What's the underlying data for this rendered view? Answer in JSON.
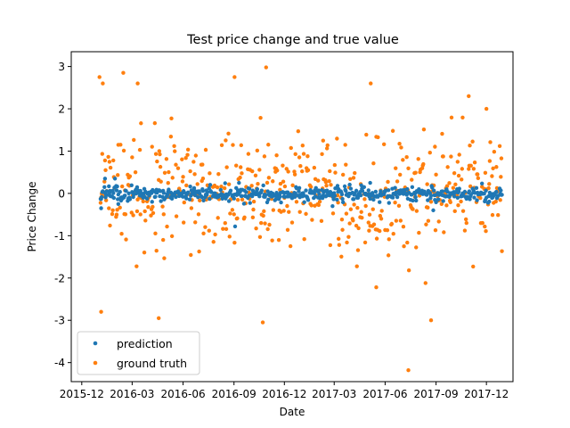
{
  "chart_data": {
    "type": "scatter",
    "title": "Test price change and true value",
    "xlabel": "Date",
    "ylabel": "Price Change",
    "x_tick_labels": [
      "2015-12",
      "2016-03",
      "2016-06",
      "2016-09",
      "2016-12",
      "2017-03",
      "2017-06",
      "2017-09",
      "2017-12"
    ],
    "x_range": [
      "2015-11-12",
      "2018-01-18"
    ],
    "x_data_range": [
      "2016-01-04",
      "2017-12-29"
    ],
    "y_ticks": [
      -4,
      -3,
      -2,
      -1,
      0,
      1,
      2,
      3
    ],
    "ylim": [
      -4.45,
      3.35
    ],
    "grid": false,
    "legend_position": "lower-left",
    "series": [
      {
        "name": "prediction",
        "color": "#1f77b4",
        "notable_points": [
          {
            "x": "2016-01-05",
            "y": -0.35
          },
          {
            "x": "2016-01-12",
            "y": 0.35
          },
          {
            "x": "2016-01-30",
            "y": 0.35
          },
          {
            "x": "2016-02-05",
            "y": -0.25
          },
          {
            "x": "2016-09-03",
            "y": -0.78
          },
          {
            "x": "2016-09-10",
            "y": 0.25
          },
          {
            "x": "2017-02-26",
            "y": -0.3
          },
          {
            "x": "2017-05-05",
            "y": 0.25
          },
          {
            "x": "2017-08-27",
            "y": -0.4
          }
        ],
        "typical_range": [
          -0.35,
          0.3
        ]
      },
      {
        "name": "ground truth",
        "color": "#ff7f0e",
        "notable_points": [
          {
            "x": "2016-01-02",
            "y": 2.75
          },
          {
            "x": "2016-01-08",
            "y": 2.6
          },
          {
            "x": "2016-02-14",
            "y": 2.85
          },
          {
            "x": "2016-03-11",
            "y": 2.6
          },
          {
            "x": "2016-09-02",
            "y": 2.75
          },
          {
            "x": "2016-10-29",
            "y": 2.98
          },
          {
            "x": "2017-05-06",
            "y": 2.6
          },
          {
            "x": "2017-10-30",
            "y": 2.3
          },
          {
            "x": "2017-12-01",
            "y": 2.0
          },
          {
            "x": "2016-10-23",
            "y": -3.05
          },
          {
            "x": "2017-08-23",
            "y": -3.0
          },
          {
            "x": "2016-04-18",
            "y": -2.95
          },
          {
            "x": "2016-01-05",
            "y": -2.8
          },
          {
            "x": "2017-07-13",
            "y": -4.18
          },
          {
            "x": "2017-05-16",
            "y": -2.22
          },
          {
            "x": "2017-08-13",
            "y": -2.12
          }
        ],
        "typical_range": [
          -1.8,
          1.8
        ]
      }
    ]
  }
}
